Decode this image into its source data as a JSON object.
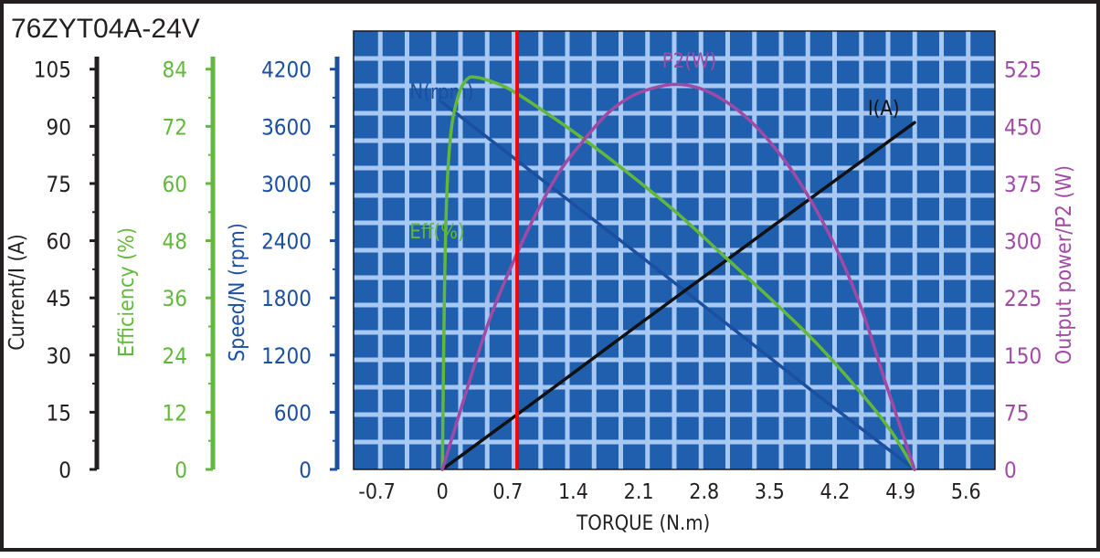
{
  "title": "76ZYT04A-24V",
  "colors": {
    "frame": "#231f20",
    "plot_background": "#1f5fae",
    "grid_line": "#a8c8f4",
    "current": "#111111",
    "efficiency": "#62b83a",
    "speed": "#1b4fa0",
    "power": "#a04aa5",
    "marker": "#ff0000"
  },
  "axes": {
    "x": {
      "label": "TORQUE (N.m)",
      "ticks": [
        "-0.7",
        "0",
        "0.7",
        "1.4",
        "2.1",
        "2.8",
        "3.5",
        "4.2",
        "4.9",
        "5.6"
      ],
      "range": [
        -0.95,
        5.91
      ]
    },
    "current": {
      "label": "Current/I (A)",
      "ticks": [
        "0",
        "15",
        "30",
        "45",
        "60",
        "75",
        "90",
        "105"
      ],
      "range": [
        0,
        115
      ]
    },
    "efficiency": {
      "label": "Efficiency (%)",
      "ticks": [
        "0",
        "12",
        "24",
        "36",
        "48",
        "60",
        "72",
        "84"
      ],
      "range": [
        0,
        92
      ]
    },
    "speed": {
      "label": "Speed/N (rpm)",
      "ticks": [
        "0",
        "600",
        "1200",
        "1800",
        "2400",
        "3000",
        "3600",
        "4200"
      ],
      "range": [
        0,
        4600
      ]
    },
    "power": {
      "label": "Output power/P2 (W)",
      "ticks": [
        "0",
        "75",
        "150",
        "225",
        "300",
        "375",
        "450",
        "525"
      ],
      "range": [
        0,
        575
      ]
    }
  },
  "chart_data": {
    "type": "line",
    "title": "76ZYT04A-24V",
    "xlabel": "TORQUE (N.m)",
    "xlim": [
      -0.95,
      5.91
    ],
    "grid": true,
    "marker_line_x": 0.8,
    "series": [
      {
        "name": "N(rpm)",
        "axis": "speed",
        "label_at": [
          -0.35,
          3890
        ],
        "points": [
          [
            0.0,
            3850
          ],
          [
            1.0,
            3090
          ],
          [
            2.0,
            2330
          ],
          [
            3.0,
            1560
          ],
          [
            4.0,
            790
          ],
          [
            5.05,
            0
          ]
        ]
      },
      {
        "name": "I(A)",
        "axis": "current",
        "label_at": [
          4.55,
          93
        ],
        "points": [
          [
            0.0,
            0
          ],
          [
            1.0,
            18
          ],
          [
            2.0,
            36.2
          ],
          [
            3.0,
            54.2
          ],
          [
            4.0,
            72.2
          ],
          [
            5.05,
            91
          ]
        ]
      },
      {
        "name": "Eff(%)",
        "axis": "efficiency",
        "label_at": [
          -0.35,
          48.5
        ],
        "points": [
          [
            0.0,
            0
          ],
          [
            0.02,
            35
          ],
          [
            0.05,
            59
          ],
          [
            0.1,
            72
          ],
          [
            0.18,
            79
          ],
          [
            0.27,
            82
          ],
          [
            0.36,
            82.3
          ],
          [
            0.5,
            81.6
          ],
          [
            0.7,
            80
          ],
          [
            1.0,
            76.3
          ],
          [
            1.5,
            69.5
          ],
          [
            2.0,
            62
          ],
          [
            2.5,
            54
          ],
          [
            3.0,
            45
          ],
          [
            3.5,
            36
          ],
          [
            4.0,
            26.5
          ],
          [
            4.5,
            15.5
          ],
          [
            4.8,
            8
          ],
          [
            5.05,
            0
          ]
        ]
      },
      {
        "name": "P2(W)",
        "axis": "power",
        "label_at": [
          2.35,
          527
        ],
        "points": [
          [
            0.0,
            0
          ],
          [
            0.25,
            100
          ],
          [
            0.5,
            195
          ],
          [
            0.75,
            270
          ],
          [
            1.0,
            335
          ],
          [
            1.25,
            390
          ],
          [
            1.5,
            430
          ],
          [
            1.75,
            465
          ],
          [
            2.0,
            488
          ],
          [
            2.25,
            500
          ],
          [
            2.5,
            505
          ],
          [
            2.75,
            500
          ],
          [
            3.0,
            485
          ],
          [
            3.25,
            462
          ],
          [
            3.5,
            430
          ],
          [
            3.75,
            390
          ],
          [
            4.0,
            340
          ],
          [
            4.25,
            280
          ],
          [
            4.5,
            205
          ],
          [
            4.75,
            110
          ],
          [
            5.05,
            0
          ]
        ]
      }
    ]
  }
}
